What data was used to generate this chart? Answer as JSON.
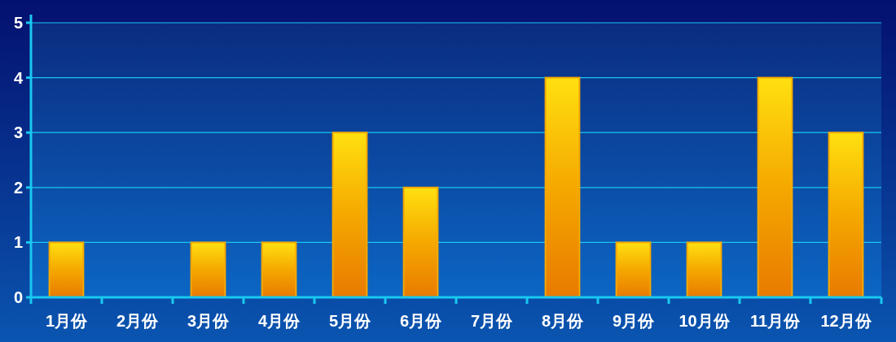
{
  "chart_data": {
    "type": "bar",
    "categories": [
      "1月份",
      "2月份",
      "3月份",
      "4月份",
      "5月份",
      "6月份",
      "7月份",
      "8月份",
      "9月份",
      "10月份",
      "11月份",
      "12月份"
    ],
    "values": [
      1,
      0,
      1,
      1,
      3,
      2,
      0,
      4,
      1,
      1,
      4,
      3
    ],
    "color": "#f5a800",
    "ylim": [
      0,
      5
    ],
    "yticks": [
      0,
      1,
      2,
      3,
      4,
      5
    ],
    "grid": "y"
  }
}
